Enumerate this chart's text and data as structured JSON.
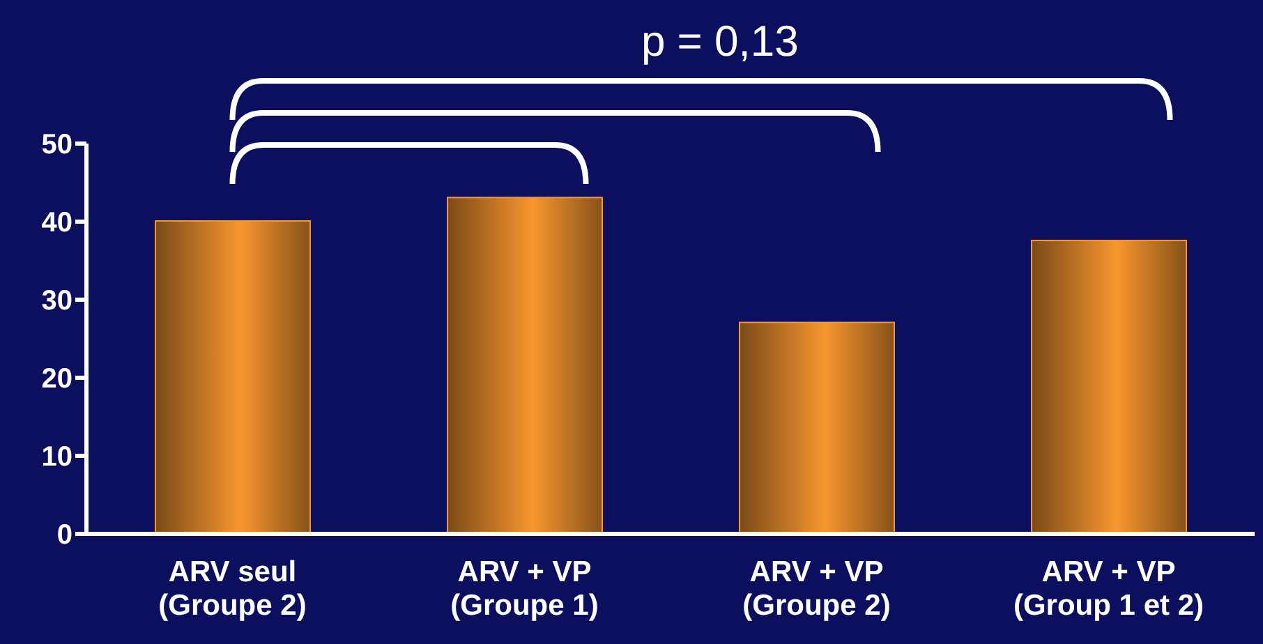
{
  "chart_data": {
    "type": "bar",
    "categories": [
      "ARV seul\n(Groupe 2)",
      "ARV + VP\n(Groupe 1)",
      "ARV + VP\n(Groupe 2)",
      "ARV + VP\n(Group 1 et 2)"
    ],
    "values": [
      40,
      43,
      27,
      37.5
    ],
    "color": "#f7962e",
    "ylim": [
      0,
      50
    ],
    "yticks": [
      0,
      10,
      20,
      30,
      40,
      50
    ],
    "grid": false,
    "legend": false,
    "annotations": [
      "p = 0,13"
    ]
  }
}
